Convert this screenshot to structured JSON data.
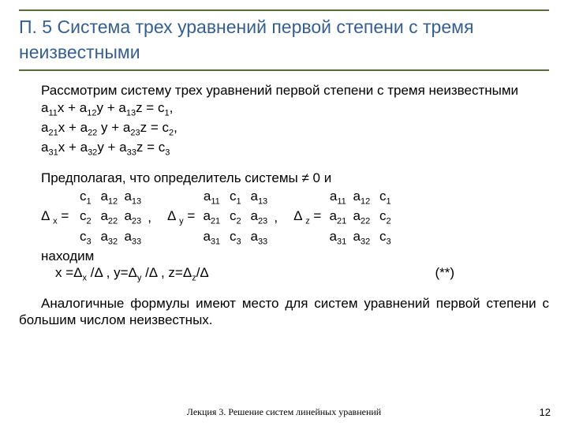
{
  "title": "П. 5 Система трех уравнений первой степени с тремя неизвестными",
  "intro": "Рассмотрим систему трех уравнений первой степени с тремя неизвестными",
  "eq1": {
    "a": "a",
    "s11": "11",
    "x": "x + a",
    "s12": "12",
    "y": "y + a",
    "s13": "13",
    "z": "z = c",
    "sc": "1",
    "end": ","
  },
  "eq2": {
    "a": "a",
    "s11": "21",
    "x": "x + a",
    "s12": "22",
    "y": " y + a",
    "s13": "23",
    "z": "z = c",
    "sc": "2",
    "end": ","
  },
  "eq3": {
    "a": "a",
    "s11": "31",
    "x": "x + a",
    "s12": "32",
    "y": "y + a",
    "s13": "33",
    "z": "z = c",
    "sc": "3",
    "end": ""
  },
  "assume": "Предполагая, что определитель системы ≠ 0 и",
  "dx_label_pre": "Δ ",
  "dx_sub": "x",
  "dx_label_post": " = ",
  "dy_label_pre": "Δ ",
  "dy_sub": "y",
  "dy_label_post": " = ",
  "dz_label_pre": "Δ ",
  "dz_sub": "z",
  "dz_label_post": " = ",
  "comma": ",",
  "mx": {
    "r1": [
      "c",
      "1",
      "a",
      "12",
      "a",
      "13"
    ],
    "r2": [
      "c",
      "2",
      "a",
      "22",
      "a",
      "23"
    ],
    "r3": [
      "c",
      "3",
      "a",
      "32",
      "a",
      "33"
    ]
  },
  "my": {
    "r1": [
      "a",
      "11",
      "c",
      "1",
      "a",
      "13"
    ],
    "r2": [
      "a",
      "21",
      "c",
      "2",
      "a",
      "23"
    ],
    "r3": [
      "a",
      "31",
      "c",
      "3",
      "a",
      "33"
    ]
  },
  "mz": {
    "r1": [
      "a",
      "11",
      "a",
      "12",
      "c",
      "1"
    ],
    "r2": [
      "a",
      "21",
      "a",
      "22",
      "c",
      "2"
    ],
    "r3": [
      "a",
      "31",
      "a",
      "32",
      "c",
      "3"
    ]
  },
  "find": "находим",
  "solve_x_pre": " x =Δ",
  "solve_x_sub": "x",
  "solve_x_post": " /Δ ,",
  "solve_y_pre": "   y=Δ",
  "solve_y_sub": "y",
  "solve_y_post": " /Δ  ,",
  "solve_z_pre": "   z=Δ",
  "solve_z_sub": "z",
  "solve_z_post": "/Δ",
  "star": "(**)",
  "closing": "Аналогичные формулы имеют место для систем уравнений первой степени с большим числом неизвестных.",
  "footer": "Лекция 3. Решение систем линейных уравнений",
  "page": "12"
}
